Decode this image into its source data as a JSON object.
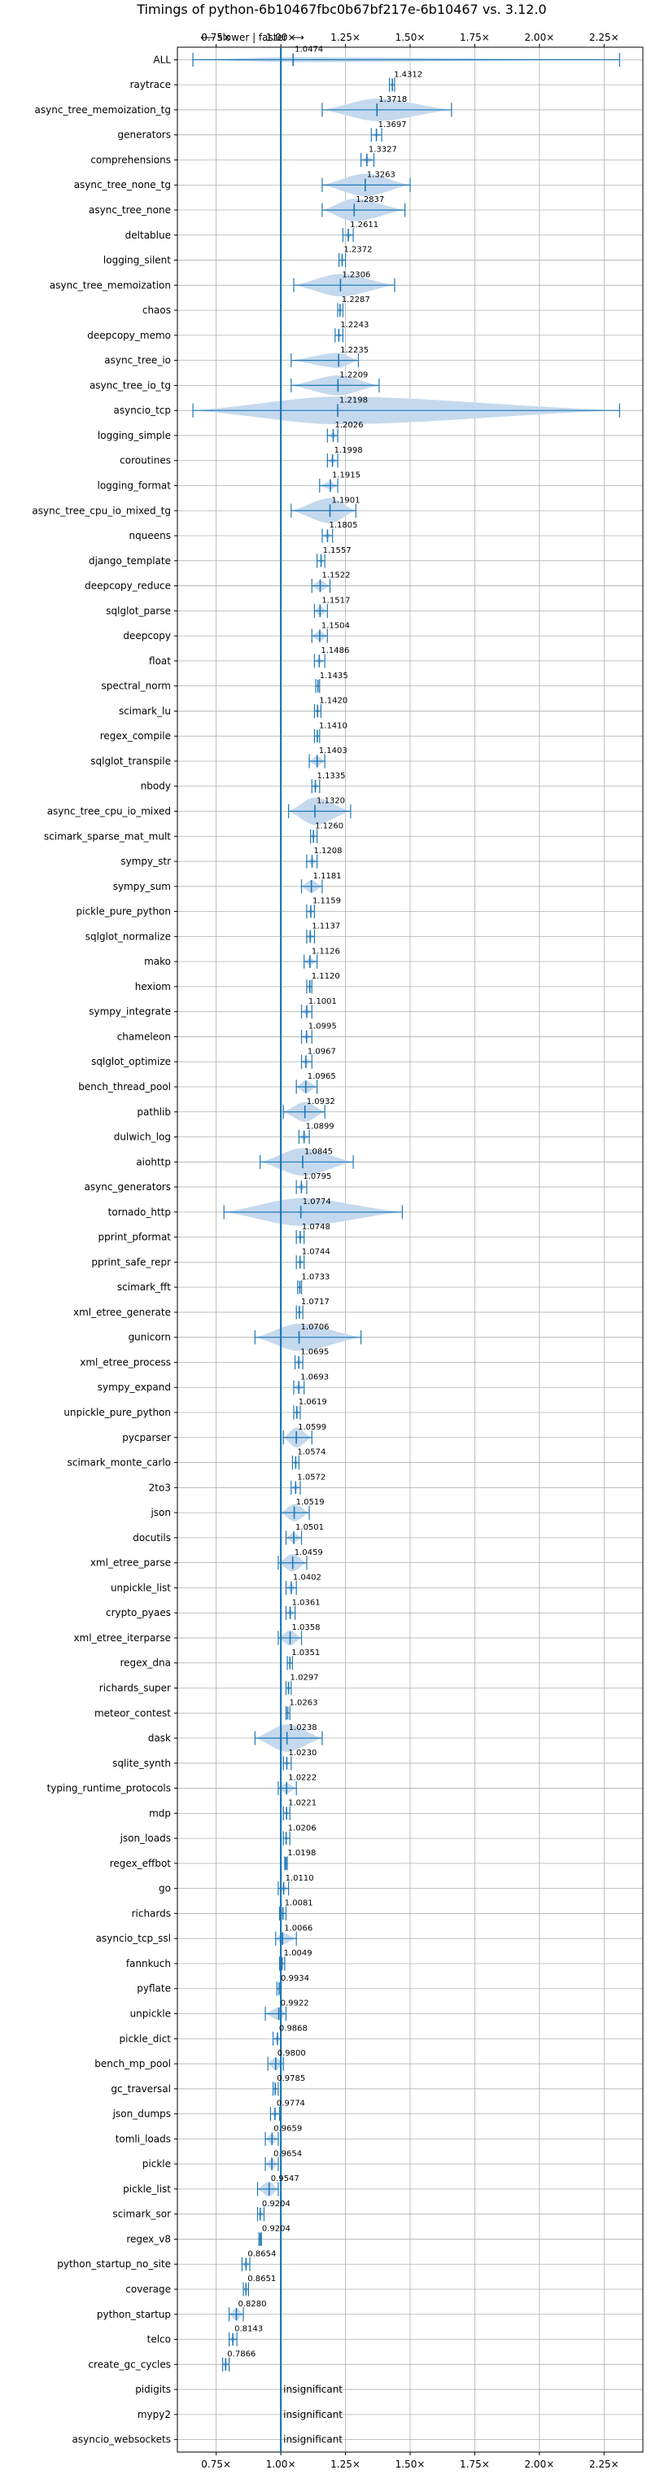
{
  "chart_data": {
    "type": "violin",
    "title": "Timings of python-6b10467fbc0b67bf217e-6b10467 vs. 3.12.0",
    "direction_label": "⟵ slower | faster ⟶",
    "xlim": [
      0.6,
      2.4
    ],
    "x_ticks": [
      0.75,
      1.0,
      1.25,
      1.5,
      1.75,
      2.0,
      2.25
    ],
    "x_tick_labels": [
      "0.75×",
      "1.00×",
      "1.25×",
      "1.50×",
      "1.75×",
      "2.00×",
      "2.25×"
    ],
    "grid": true,
    "reference_line": 1.0,
    "insignificant_label": "insignificant",
    "rows": [
      {
        "name": "ALL",
        "mean": "1.0474",
        "v": 1.0474,
        "lo": 0.66,
        "hi": 2.31,
        "w": 0.1
      },
      {
        "name": "raytrace",
        "mean": "1.4312",
        "v": 1.4312,
        "lo": 1.42,
        "hi": 1.44,
        "w": 0.07
      },
      {
        "name": "async_tree_memoization_tg",
        "mean": "1.3718",
        "v": 1.3718,
        "lo": 1.16,
        "hi": 1.66,
        "w": 0.45
      },
      {
        "name": "generators",
        "mean": "1.3697",
        "v": 1.3697,
        "lo": 1.35,
        "hi": 1.39,
        "w": 0.08
      },
      {
        "name": "comprehensions",
        "mean": "1.3327",
        "v": 1.3327,
        "lo": 1.31,
        "hi": 1.36,
        "w": 0.12
      },
      {
        "name": "async_tree_none_tg",
        "mean": "1.3263",
        "v": 1.3263,
        "lo": 1.16,
        "hi": 1.5,
        "w": 0.45
      },
      {
        "name": "async_tree_none",
        "mean": "1.2837",
        "v": 1.2837,
        "lo": 1.16,
        "hi": 1.48,
        "w": 0.45
      },
      {
        "name": "deltablue",
        "mean": "1.2611",
        "v": 1.2611,
        "lo": 1.24,
        "hi": 1.28,
        "w": 0.1
      },
      {
        "name": "logging_silent",
        "mean": "1.2372",
        "v": 1.2372,
        "lo": 1.225,
        "hi": 1.25,
        "w": 0.07
      },
      {
        "name": "async_tree_memoization",
        "mean": "1.2306",
        "v": 1.2306,
        "lo": 1.05,
        "hi": 1.44,
        "w": 0.45
      },
      {
        "name": "chaos",
        "mean": "1.2287",
        "v": 1.2287,
        "lo": 1.22,
        "hi": 1.24,
        "w": 0.07
      },
      {
        "name": "deepcopy_memo",
        "mean": "1.2243",
        "v": 1.2243,
        "lo": 1.21,
        "hi": 1.24,
        "w": 0.07
      },
      {
        "name": "async_tree_io",
        "mean": "1.2235",
        "v": 1.2235,
        "lo": 1.04,
        "hi": 1.3,
        "w": 0.3
      },
      {
        "name": "async_tree_io_tg",
        "mean": "1.2209",
        "v": 1.2209,
        "lo": 1.04,
        "hi": 1.38,
        "w": 0.4
      },
      {
        "name": "asyncio_tcp",
        "mean": "1.2198",
        "v": 1.2198,
        "lo": 0.66,
        "hi": 2.31,
        "w": 0.55
      },
      {
        "name": "logging_simple",
        "mean": "1.2026",
        "v": 1.2026,
        "lo": 1.18,
        "hi": 1.22,
        "w": 0.1
      },
      {
        "name": "coroutines",
        "mean": "1.1998",
        "v": 1.1998,
        "lo": 1.18,
        "hi": 1.22,
        "w": 0.1
      },
      {
        "name": "logging_format",
        "mean": "1.1915",
        "v": 1.1915,
        "lo": 1.15,
        "hi": 1.22,
        "w": 0.15
      },
      {
        "name": "async_tree_cpu_io_mixed_tg",
        "mean": "1.1901",
        "v": 1.1901,
        "lo": 1.04,
        "hi": 1.29,
        "w": 0.5
      },
      {
        "name": "nqueens",
        "mean": "1.1805",
        "v": 1.1805,
        "lo": 1.16,
        "hi": 1.2,
        "w": 0.1
      },
      {
        "name": "django_template",
        "mean": "1.1557",
        "v": 1.1557,
        "lo": 1.14,
        "hi": 1.17,
        "w": 0.08
      },
      {
        "name": "deepcopy_reduce",
        "mean": "1.1522",
        "v": 1.1522,
        "lo": 1.12,
        "hi": 1.19,
        "w": 0.2
      },
      {
        "name": "sqlglot_parse",
        "mean": "1.1517",
        "v": 1.1517,
        "lo": 1.13,
        "hi": 1.18,
        "w": 0.18
      },
      {
        "name": "deepcopy",
        "mean": "1.1504",
        "v": 1.1504,
        "lo": 1.12,
        "hi": 1.18,
        "w": 0.2
      },
      {
        "name": "float",
        "mean": "1.1486",
        "v": 1.1486,
        "lo": 1.13,
        "hi": 1.17,
        "w": 0.1
      },
      {
        "name": "spectral_norm",
        "mean": "1.1435",
        "v": 1.1435,
        "lo": 1.135,
        "hi": 1.15,
        "w": 0.07
      },
      {
        "name": "scimark_lu",
        "mean": "1.1420",
        "v": 1.142,
        "lo": 1.13,
        "hi": 1.155,
        "w": 0.07
      },
      {
        "name": "regex_compile",
        "mean": "1.1410",
        "v": 1.141,
        "lo": 1.13,
        "hi": 1.15,
        "w": 0.07
      },
      {
        "name": "sqlglot_transpile",
        "mean": "1.1403",
        "v": 1.1403,
        "lo": 1.11,
        "hi": 1.17,
        "w": 0.2
      },
      {
        "name": "nbody",
        "mean": "1.1335",
        "v": 1.1335,
        "lo": 1.12,
        "hi": 1.15,
        "w": 0.1
      },
      {
        "name": "async_tree_cpu_io_mixed",
        "mean": "1.1320",
        "v": 1.132,
        "lo": 1.03,
        "hi": 1.27,
        "w": 0.55
      },
      {
        "name": "scimark_sparse_mat_mult",
        "mean": "1.1260",
        "v": 1.126,
        "lo": 1.115,
        "hi": 1.14,
        "w": 0.07
      },
      {
        "name": "sympy_str",
        "mean": "1.1208",
        "v": 1.1208,
        "lo": 1.1,
        "hi": 1.14,
        "w": 0.12
      },
      {
        "name": "sympy_sum",
        "mean": "1.1181",
        "v": 1.1181,
        "lo": 1.08,
        "hi": 1.16,
        "w": 0.25
      },
      {
        "name": "pickle_pure_python",
        "mean": "1.1159",
        "v": 1.1159,
        "lo": 1.1,
        "hi": 1.13,
        "w": 0.1
      },
      {
        "name": "sqlglot_normalize",
        "mean": "1.1137",
        "v": 1.1137,
        "lo": 1.1,
        "hi": 1.13,
        "w": 0.1
      },
      {
        "name": "mako",
        "mean": "1.1126",
        "v": 1.1126,
        "lo": 1.09,
        "hi": 1.14,
        "w": 0.15
      },
      {
        "name": "hexiom",
        "mean": "1.1120",
        "v": 1.112,
        "lo": 1.1,
        "hi": 1.12,
        "w": 0.07
      },
      {
        "name": "sympy_integrate",
        "mean": "1.1001",
        "v": 1.1001,
        "lo": 1.08,
        "hi": 1.12,
        "w": 0.12
      },
      {
        "name": "chameleon",
        "mean": "1.0995",
        "v": 1.0995,
        "lo": 1.08,
        "hi": 1.12,
        "w": 0.1
      },
      {
        "name": "sqlglot_optimize",
        "mean": "1.0967",
        "v": 1.0967,
        "lo": 1.08,
        "hi": 1.12,
        "w": 0.12
      },
      {
        "name": "bench_thread_pool",
        "mean": "1.0965",
        "v": 1.0965,
        "lo": 1.06,
        "hi": 1.14,
        "w": 0.25
      },
      {
        "name": "pathlib",
        "mean": "1.0932",
        "v": 1.0932,
        "lo": 1.01,
        "hi": 1.17,
        "w": 0.4
      },
      {
        "name": "dulwich_log",
        "mean": "1.0899",
        "v": 1.0899,
        "lo": 1.07,
        "hi": 1.11,
        "w": 0.12
      },
      {
        "name": "aiohttp",
        "mean": "1.0845",
        "v": 1.0845,
        "lo": 0.92,
        "hi": 1.28,
        "w": 0.55
      },
      {
        "name": "async_generators",
        "mean": "1.0795",
        "v": 1.0795,
        "lo": 1.06,
        "hi": 1.1,
        "w": 0.12
      },
      {
        "name": "tornado_http",
        "mean": "1.0774",
        "v": 1.0774,
        "lo": 0.78,
        "hi": 1.47,
        "w": 0.55
      },
      {
        "name": "pprint_pformat",
        "mean": "1.0748",
        "v": 1.0748,
        "lo": 1.06,
        "hi": 1.09,
        "w": 0.1
      },
      {
        "name": "pprint_safe_repr",
        "mean": "1.0744",
        "v": 1.0744,
        "lo": 1.06,
        "hi": 1.09,
        "w": 0.1
      },
      {
        "name": "scimark_fft",
        "mean": "1.0733",
        "v": 1.0733,
        "lo": 1.065,
        "hi": 1.08,
        "w": 0.07
      },
      {
        "name": "xml_etree_generate",
        "mean": "1.0717",
        "v": 1.0717,
        "lo": 1.06,
        "hi": 1.085,
        "w": 0.07
      },
      {
        "name": "gunicorn",
        "mean": "1.0706",
        "v": 1.0706,
        "lo": 0.9,
        "hi": 1.31,
        "w": 0.55
      },
      {
        "name": "xml_etree_process",
        "mean": "1.0695",
        "v": 1.0695,
        "lo": 1.055,
        "hi": 1.085,
        "w": 0.1
      },
      {
        "name": "sympy_expand",
        "mean": "1.0693",
        "v": 1.0693,
        "lo": 1.05,
        "hi": 1.09,
        "w": 0.12
      },
      {
        "name": "unpickle_pure_python",
        "mean": "1.0619",
        "v": 1.0619,
        "lo": 1.05,
        "hi": 1.075,
        "w": 0.08
      },
      {
        "name": "pycparser",
        "mean": "1.0599",
        "v": 1.0599,
        "lo": 1.01,
        "hi": 1.12,
        "w": 0.4
      },
      {
        "name": "scimark_monte_carlo",
        "mean": "1.0574",
        "v": 1.0574,
        "lo": 1.045,
        "hi": 1.07,
        "w": 0.08
      },
      {
        "name": "2to3",
        "mean": "1.0572",
        "v": 1.0572,
        "lo": 1.04,
        "hi": 1.075,
        "w": 0.1
      },
      {
        "name": "json",
        "mean": "1.0519",
        "v": 1.0519,
        "lo": 1.0,
        "hi": 1.11,
        "w": 0.35
      },
      {
        "name": "docutils",
        "mean": "1.0501",
        "v": 1.0501,
        "lo": 1.02,
        "hi": 1.08,
        "w": 0.2
      },
      {
        "name": "xml_etree_parse",
        "mean": "1.0459",
        "v": 1.0459,
        "lo": 0.99,
        "hi": 1.1,
        "w": 0.35
      },
      {
        "name": "unpickle_list",
        "mean": "1.0402",
        "v": 1.0402,
        "lo": 1.02,
        "hi": 1.06,
        "w": 0.15
      },
      {
        "name": "crypto_pyaes",
        "mean": "1.0361",
        "v": 1.0361,
        "lo": 1.02,
        "hi": 1.055,
        "w": 0.12
      },
      {
        "name": "xml_etree_iterparse",
        "mean": "1.0358",
        "v": 1.0358,
        "lo": 0.99,
        "hi": 1.08,
        "w": 0.3
      },
      {
        "name": "regex_dna",
        "mean": "1.0351",
        "v": 1.0351,
        "lo": 1.025,
        "hi": 1.045,
        "w": 0.07
      },
      {
        "name": "richards_super",
        "mean": "1.0297",
        "v": 1.0297,
        "lo": 1.02,
        "hi": 1.04,
        "w": 0.08
      },
      {
        "name": "meteor_contest",
        "mean": "1.0263",
        "v": 1.0263,
        "lo": 1.02,
        "hi": 1.035,
        "w": 0.07
      },
      {
        "name": "dask",
        "mean": "1.0238",
        "v": 1.0238,
        "lo": 0.9,
        "hi": 1.16,
        "w": 0.55
      },
      {
        "name": "sqlite_synth",
        "mean": "1.0230",
        "v": 1.023,
        "lo": 1.01,
        "hi": 1.04,
        "w": 0.08
      },
      {
        "name": "typing_runtime_protocols",
        "mean": "1.0222",
        "v": 1.0222,
        "lo": 0.99,
        "hi": 1.06,
        "w": 0.2
      },
      {
        "name": "mdp",
        "mean": "1.0221",
        "v": 1.0221,
        "lo": 1.01,
        "hi": 1.035,
        "w": 0.08
      },
      {
        "name": "json_loads",
        "mean": "1.0206",
        "v": 1.0206,
        "lo": 1.01,
        "hi": 1.035,
        "w": 0.08
      },
      {
        "name": "regex_effbot",
        "mean": "1.0198",
        "v": 1.0198,
        "lo": 1.015,
        "hi": 1.025,
        "w": 0.06
      },
      {
        "name": "go",
        "mean": "1.0110",
        "v": 1.011,
        "lo": 0.99,
        "hi": 1.03,
        "w": 0.12
      },
      {
        "name": "richards",
        "mean": "1.0081",
        "v": 1.0081,
        "lo": 0.995,
        "hi": 1.02,
        "w": 0.08
      },
      {
        "name": "asyncio_tcp_ssl",
        "mean": "1.0066",
        "v": 1.0066,
        "lo": 0.98,
        "hi": 1.06,
        "w": 0.22
      },
      {
        "name": "fannkuch",
        "mean": "1.0049",
        "v": 1.0049,
        "lo": 0.995,
        "hi": 1.015,
        "w": 0.07
      },
      {
        "name": "pyflate",
        "mean": "0.9934",
        "v": 0.9934,
        "lo": 0.985,
        "hi": 1.0,
        "w": 0.07
      },
      {
        "name": "unpickle",
        "mean": "0.9922",
        "v": 0.9922,
        "lo": 0.94,
        "hi": 1.02,
        "w": 0.25
      },
      {
        "name": "pickle_dict",
        "mean": "0.9868",
        "v": 0.9868,
        "lo": 0.97,
        "hi": 1.0,
        "w": 0.12
      },
      {
        "name": "bench_mp_pool",
        "mean": "0.9800",
        "v": 0.98,
        "lo": 0.95,
        "hi": 1.01,
        "w": 0.25
      },
      {
        "name": "gc_traversal",
        "mean": "0.9785",
        "v": 0.9785,
        "lo": 0.97,
        "hi": 0.99,
        "w": 0.08
      },
      {
        "name": "json_dumps",
        "mean": "0.9774",
        "v": 0.9774,
        "lo": 0.96,
        "hi": 0.995,
        "w": 0.12
      },
      {
        "name": "tomli_loads",
        "mean": "0.9659",
        "v": 0.9659,
        "lo": 0.94,
        "hi": 0.99,
        "w": 0.2
      },
      {
        "name": "pickle",
        "mean": "0.9654",
        "v": 0.9654,
        "lo": 0.94,
        "hi": 0.99,
        "w": 0.2
      },
      {
        "name": "pickle_list",
        "mean": "0.9547",
        "v": 0.9547,
        "lo": 0.91,
        "hi": 0.99,
        "w": 0.3
      },
      {
        "name": "scimark_sor",
        "mean": "0.9204",
        "v": 0.9204,
        "lo": 0.91,
        "hi": 0.935,
        "w": 0.08
      },
      {
        "name": "regex_v8",
        "mean": "0.9204",
        "v": 0.9204,
        "lo": 0.915,
        "hi": 0.925,
        "w": 0.06
      },
      {
        "name": "python_startup_no_site",
        "mean": "0.8654",
        "v": 0.8654,
        "lo": 0.85,
        "hi": 0.88,
        "w": 0.12
      },
      {
        "name": "coverage",
        "mean": "0.8651",
        "v": 0.8651,
        "lo": 0.855,
        "hi": 0.875,
        "w": 0.1
      },
      {
        "name": "python_startup",
        "mean": "0.8280",
        "v": 0.828,
        "lo": 0.8,
        "hi": 0.855,
        "w": 0.25
      },
      {
        "name": "telco",
        "mean": "0.8143",
        "v": 0.8143,
        "lo": 0.8,
        "hi": 0.83,
        "w": 0.12
      },
      {
        "name": "create_gc_cycles",
        "mean": "0.7866",
        "v": 0.7866,
        "lo": 0.775,
        "hi": 0.8,
        "w": 0.12
      },
      {
        "name": "pidigits",
        "mean": "",
        "v": null,
        "insignificant": true
      },
      {
        "name": "mypy2",
        "mean": "",
        "v": null,
        "insignificant": true
      },
      {
        "name": "asyncio_websockets",
        "mean": "",
        "v": null,
        "insignificant": true
      }
    ]
  },
  "colors": {
    "violin_fill": "#c5d9ee",
    "mark": "#1f77b4",
    "reference_line": "#1f77b4",
    "grid": "#b0b0b0"
  }
}
